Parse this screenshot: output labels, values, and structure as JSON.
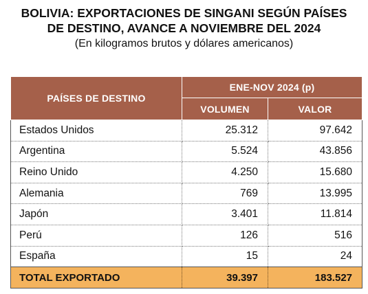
{
  "title_line1": "BOLIVIA: EXPORTACIONES DE SINGANI SEGÚN PAÍSES",
  "title_line2": "DE DESTINO, AVANCE A NOVIEMBRE DEL 2024",
  "subtitle": "(En kilogramos brutos y dólares americanos)",
  "table": {
    "header_country": "PAÍSES DE DESTINO",
    "header_period": "ENE-NOV 2024 (p)",
    "header_volume": "VOLUMEN",
    "header_value": "VALOR",
    "rows": [
      {
        "country": "Estados Unidos",
        "volumen": "25.312",
        "valor": "97.642"
      },
      {
        "country": "Argentina",
        "volumen": "5.524",
        "valor": "43.856"
      },
      {
        "country": "Reino Unido",
        "volumen": "4.250",
        "valor": "15.680"
      },
      {
        "country": "Alemania",
        "volumen": "769",
        "valor": "13.995"
      },
      {
        "country": "Japón",
        "volumen": "3.401",
        "valor": "11.814"
      },
      {
        "country": "Perú",
        "volumen": "126",
        "valor": "516"
      },
      {
        "country": "España",
        "volumen": "15",
        "valor": "24"
      }
    ],
    "total": {
      "label": "TOTAL EXPORTADO",
      "volumen": "39.397",
      "valor": "183.527"
    }
  },
  "colors": {
    "header_bg": "#a5604a",
    "total_bg": "#f4b35d"
  }
}
